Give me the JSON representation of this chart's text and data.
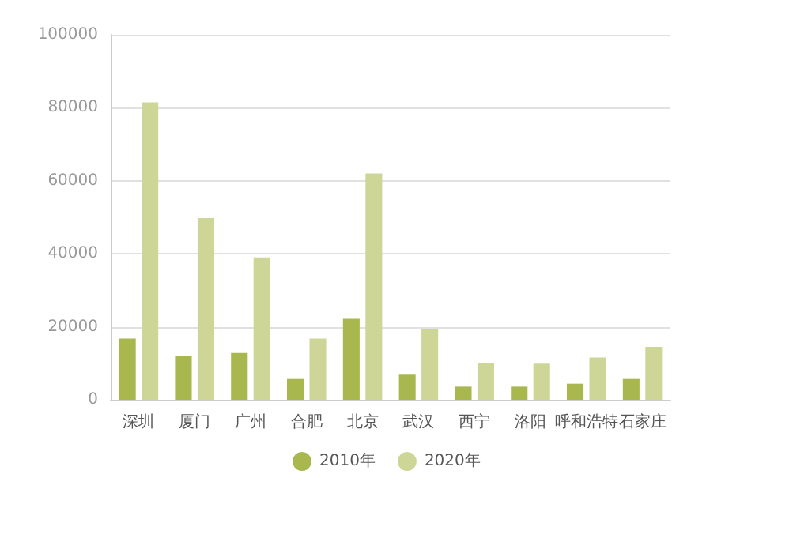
{
  "chart_data": {
    "type": "bar",
    "categories": [
      "深圳",
      "厦门",
      "广州",
      "合肥",
      "北京",
      "武汉",
      "西宁",
      "洛阳",
      "呼和浩特",
      "石家庄"
    ],
    "series": [
      {
        "name": "2010年",
        "color": "#a8b84e",
        "values": [
          16800,
          11900,
          12800,
          5700,
          22200,
          7100,
          3600,
          3600,
          4400,
          5700
        ]
      },
      {
        "name": "2020年",
        "color": "#cdd697",
        "values": [
          81500,
          49800,
          39000,
          16800,
          62000,
          19300,
          10200,
          9900,
          11600,
          14500
        ]
      }
    ],
    "ylim": [
      0,
      100000
    ],
    "yticks": [
      0,
      20000,
      40000,
      60000,
      80000,
      100000
    ],
    "grid": "y",
    "legend": "bottom"
  }
}
